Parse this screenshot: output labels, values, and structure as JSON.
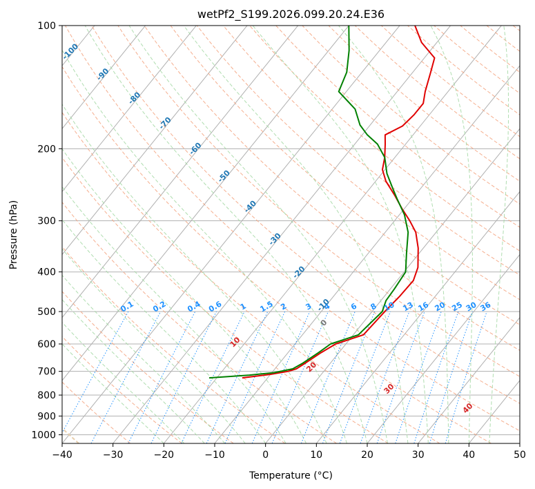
{
  "chart_data": {
    "type": "line",
    "subtype": "skew-t log-p",
    "title": "wetPf2_S199.2026.099.20.24.E36",
    "xlabel": "Temperature (°C)",
    "ylabel": "Pressure (hPa)",
    "xlim": [
      -40,
      50
    ],
    "ylim": [
      1050,
      100
    ],
    "x_ticks": [
      -40,
      -30,
      -20,
      -10,
      0,
      10,
      20,
      30,
      40,
      50
    ],
    "y_ticks": [
      100,
      200,
      300,
      400,
      500,
      600,
      700,
      800,
      900,
      1000
    ],
    "grid": true,
    "skew_deg_per_decade": 65,
    "colors": {
      "temperature": "#e00000",
      "dewpoint": "#008000",
      "isotherm_label": "#1f77b4",
      "mixing_ratio": "#1e90ff",
      "dry_adiabat": "#f4a582",
      "moist_adiabat": "#a6d9a6",
      "dry_label": "#d62728",
      "grid": "#b0b0b0"
    },
    "series": [
      {
        "name": "Temperature",
        "points": [
          [
            726,
            -15.0
          ],
          [
            712,
            -10.0
          ],
          [
            700,
            -7.0
          ],
          [
            690,
            -5.8
          ],
          [
            670,
            -5.0
          ],
          [
            630,
            -3.5
          ],
          [
            600,
            -2.0
          ],
          [
            570,
            2.0
          ],
          [
            500,
            2.5
          ],
          [
            460,
            3.0
          ],
          [
            420,
            3.2
          ],
          [
            390,
            2.0
          ],
          [
            350,
            -1.0
          ],
          [
            320,
            -4.0
          ],
          [
            300,
            -7.0
          ],
          [
            280,
            -10.5
          ],
          [
            260,
            -14.0
          ],
          [
            240,
            -18.0
          ],
          [
            225,
            -20.5
          ],
          [
            210,
            -22.0
          ],
          [
            195,
            -24.0
          ],
          [
            185,
            -25.5
          ],
          [
            176,
            -23.5
          ],
          [
            165,
            -23.0
          ],
          [
            155,
            -23.0
          ],
          [
            145,
            -24.5
          ],
          [
            130,
            -26.5
          ],
          [
            120,
            -28.0
          ],
          [
            110,
            -33.0
          ],
          [
            100,
            -37.0
          ]
        ]
      },
      {
        "name": "Dewpoint",
        "points": [
          [
            726,
            -21.5
          ],
          [
            715,
            -14.0
          ],
          [
            705,
            -9.5
          ],
          [
            690,
            -6.5
          ],
          [
            670,
            -5.5
          ],
          [
            630,
            -4.0
          ],
          [
            600,
            -3.0
          ],
          [
            570,
            1.0
          ],
          [
            500,
            2.0
          ],
          [
            470,
            1.0
          ],
          [
            440,
            0.8
          ],
          [
            400,
            0.3
          ],
          [
            360,
            -2.5
          ],
          [
            320,
            -5.5
          ],
          [
            290,
            -9.0
          ],
          [
            265,
            -13.0
          ],
          [
            250,
            -15.5
          ],
          [
            230,
            -19.0
          ],
          [
            210,
            -22.0
          ],
          [
            195,
            -25.5
          ],
          [
            185,
            -29.0
          ],
          [
            175,
            -32.0
          ],
          [
            160,
            -35.5
          ],
          [
            145,
            -41.5
          ],
          [
            130,
            -43.0
          ],
          [
            115,
            -46.0
          ],
          [
            100,
            -50.0
          ]
        ]
      }
    ],
    "isotherm_labels": [
      "-100",
      "-90",
      "-80",
      "-70",
      "-60",
      "-50",
      "-40",
      "-30",
      "-20",
      "-10"
    ],
    "mixing_ratio_labels": [
      "0.1",
      "0.2",
      "0.4",
      "0.6",
      "1",
      "1.5",
      "2",
      "3",
      "4",
      "6",
      "8",
      "10",
      "13",
      "16",
      "20",
      "25",
      "30",
      "36"
    ],
    "dry_adiabat_labels": [
      "10",
      "20",
      "30",
      "40"
    ],
    "moist_adiabat_labels": [
      "0"
    ]
  }
}
